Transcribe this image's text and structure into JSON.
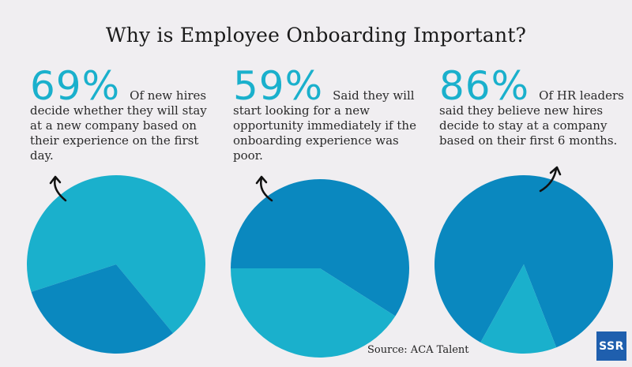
{
  "title": "Why is Employee Onboarding Important?",
  "stats": [
    {
      "pct": "69%",
      "text": "Of new hires decide whether they will stay at a new company based on their experience on the first day."
    },
    {
      "pct": "59%",
      "text": "Said they will start looking for a new opportunity immediately if the onboarding experience was poor."
    },
    {
      "pct": "86%",
      "text": "Of HR leaders said they believe new hires decide to stay at a company based on their first 6 months."
    }
  ],
  "source": "Source: ACA Talent",
  "logo": "SSR",
  "colors": {
    "light": "#1ab0cc",
    "dark": "#0a88bf",
    "accent": "#1ab0cc",
    "logo_bg": "#1f5fae"
  },
  "chart_data": [
    {
      "type": "pie",
      "title": "",
      "slices": [
        {
          "value": 69,
          "color": "#1ab0cc"
        },
        {
          "value": 31,
          "color": "#0a88bf"
        }
      ]
    },
    {
      "type": "pie",
      "title": "",
      "slices": [
        {
          "value": 59,
          "color": "#0a88bf"
        },
        {
          "value": 41,
          "color": "#1ab0cc"
        }
      ]
    },
    {
      "type": "pie",
      "title": "",
      "slices": [
        {
          "value": 86,
          "color": "#0a88bf"
        },
        {
          "value": 14,
          "color": "#1ab0cc"
        }
      ]
    }
  ]
}
